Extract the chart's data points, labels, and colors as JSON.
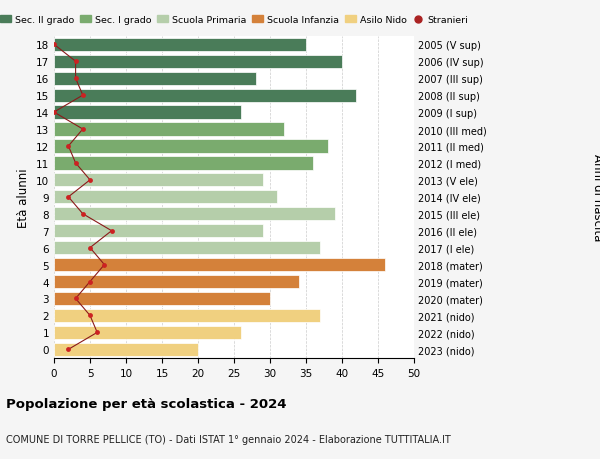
{
  "ages": [
    18,
    17,
    16,
    15,
    14,
    13,
    12,
    11,
    10,
    9,
    8,
    7,
    6,
    5,
    4,
    3,
    2,
    1,
    0
  ],
  "bar_values": [
    35,
    40,
    28,
    42,
    26,
    32,
    38,
    36,
    29,
    31,
    39,
    29,
    37,
    46,
    34,
    30,
    37,
    26,
    20
  ],
  "stranieri_values": [
    0,
    3,
    3,
    4,
    0,
    4,
    2,
    3,
    5,
    2,
    4,
    8,
    5,
    7,
    5,
    3,
    5,
    6,
    2
  ],
  "right_labels": [
    "2005 (V sup)",
    "2006 (IV sup)",
    "2007 (III sup)",
    "2008 (II sup)",
    "2009 (I sup)",
    "2010 (III med)",
    "2011 (II med)",
    "2012 (I med)",
    "2013 (V ele)",
    "2014 (IV ele)",
    "2015 (III ele)",
    "2016 (II ele)",
    "2017 (I ele)",
    "2018 (mater)",
    "2019 (mater)",
    "2020 (mater)",
    "2021 (nido)",
    "2022 (nido)",
    "2023 (nido)"
  ],
  "colors": {
    "Sec. II grado": "#4a7c59",
    "Sec. I grado": "#7aab6e",
    "Scuola Primaria": "#b5ceaa",
    "Scuola Infanzia": "#d4813a",
    "Asilo Nido": "#f0d080",
    "Stranieri": "#aa2222"
  },
  "bar_colors": [
    "#4a7c59",
    "#4a7c59",
    "#4a7c59",
    "#4a7c59",
    "#4a7c59",
    "#7aab6e",
    "#7aab6e",
    "#7aab6e",
    "#b5ceaa",
    "#b5ceaa",
    "#b5ceaa",
    "#b5ceaa",
    "#b5ceaa",
    "#d4813a",
    "#d4813a",
    "#d4813a",
    "#f0d080",
    "#f0d080",
    "#f0d080"
  ],
  "title": "Popolazione per età scolastica - 2024",
  "subtitle": "COMUNE DI TORRE PELLICE (TO) - Dati ISTAT 1° gennaio 2024 - Elaborazione TUTTITALIA.IT",
  "ylabel": "Età alunni",
  "right_ylabel": "Anni di nascita",
  "xlim": [
    0,
    50
  ],
  "background_color": "#f5f5f5",
  "plot_background": "#ffffff"
}
